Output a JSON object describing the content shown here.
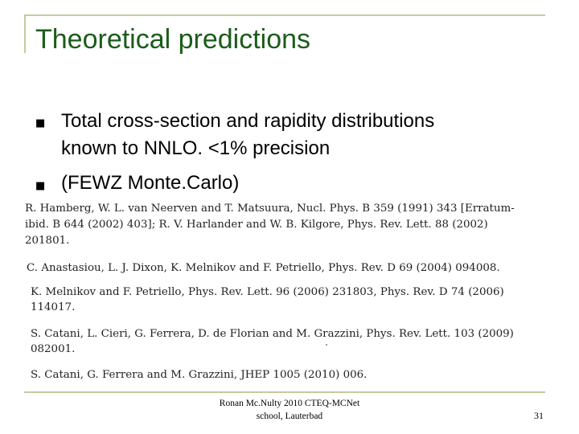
{
  "slide": {
    "title": "Theoretical predictions",
    "bullets": [
      "Total cross-section and rapidity distributions",
      "known to NNLO.  <1% precision",
      "(FEWZ Monte.Carlo)"
    ],
    "bullet_marker": "n",
    "references": [
      "R. Hamberg, W. L. van Neerven and T. Matsuura, Nucl. Phys. B 359 (1991) 343 [Erratum-",
      "ibid. B 644 (2002) 403]; R. V. Harlander and W. B. Kilgore, Phys. Rev. Lett. 88 (2002)",
      "201801.",
      "C. Anastasiou, L. J. Dixon, K. Melnikov and F. Petriello, Phys. Rev. D 69 (2004) 094008.",
      "K. Melnikov and F. Petriello, Phys. Rev. Lett. 96 (2006) 231803, Phys. Rev. D 74 (2006)",
      "114017.",
      "S. Catani, L. Cieri, G. Ferrera, D. de Florian and M. Grazzini, Phys. Rev. Lett. 103 (2009)",
      "082001.",
      "S. Catani, G. Ferrera and M. Grazzini, JHEP 1005 (2010) 006."
    ],
    "footer": {
      "line1": "Ronan Mc.Nulty  2010 CTEQ-MCNet",
      "line2": "school, Lauterbad"
    },
    "page_number": "31",
    "colors": {
      "title": "#1a5c1a",
      "frame": "#c8c8a0"
    }
  }
}
